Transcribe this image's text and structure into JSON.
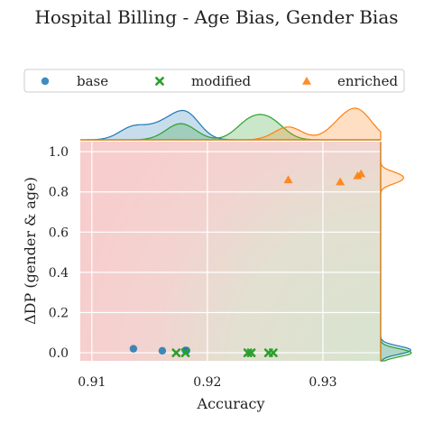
{
  "chart_data": {
    "type": "scatter",
    "title": "Hospital Billing - Age Bias, Gender Bias",
    "xlabel": "Accuracy",
    "ylabel": "ΔDP (gender & age)",
    "xlim": [
      0.909,
      0.935
    ],
    "ylim": [
      -0.04,
      1.05
    ],
    "x_ticks": [
      "0.91",
      "0.92",
      "0.93"
    ],
    "y_ticks": [
      "0.0",
      "0.2",
      "0.4",
      "0.6",
      "0.8",
      "1.0"
    ],
    "grid": true,
    "legend_position": "top",
    "series": [
      {
        "name": "base",
        "marker": "circle",
        "color": "#1f77b4",
        "points": [
          [
            0.9136,
            0.02
          ],
          [
            0.9161,
            0.01
          ],
          [
            0.9181,
            0.012
          ],
          [
            0.9182,
            0.011
          ]
        ]
      },
      {
        "name": "modified",
        "marker": "x",
        "color": "#2ca02c",
        "points": [
          [
            0.9173,
            0.0
          ],
          [
            0.9181,
            0.0
          ],
          [
            0.9235,
            0.0
          ],
          [
            0.9238,
            0.0
          ],
          [
            0.9253,
            0.0
          ],
          [
            0.9257,
            0.0
          ]
        ]
      },
      {
        "name": "enriched",
        "marker": "triangle",
        "color": "#ff7f0e",
        "points": [
          [
            0.927,
            0.86
          ],
          [
            0.9315,
            0.85
          ],
          [
            0.933,
            0.88
          ],
          [
            0.9333,
            0.89
          ]
        ]
      }
    ]
  }
}
